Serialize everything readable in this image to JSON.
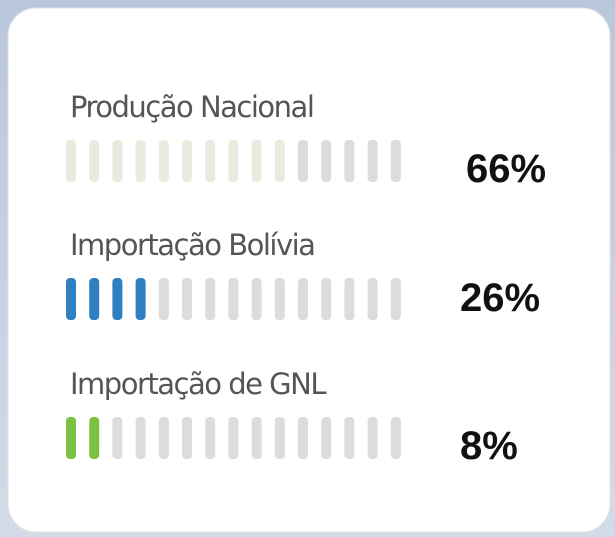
{
  "chart_data": {
    "type": "bar",
    "categories": [
      "Produção Nacional",
      "Importação Bolívia",
      "Importação de GNL"
    ],
    "values": [
      66,
      26,
      8
    ],
    "value_labels": [
      "66%",
      "26%",
      "8%"
    ],
    "colors": [
      "#ebeadf",
      "#2f7fc1",
      "#7cc142"
    ],
    "xlim": [
      0,
      100
    ]
  }
}
